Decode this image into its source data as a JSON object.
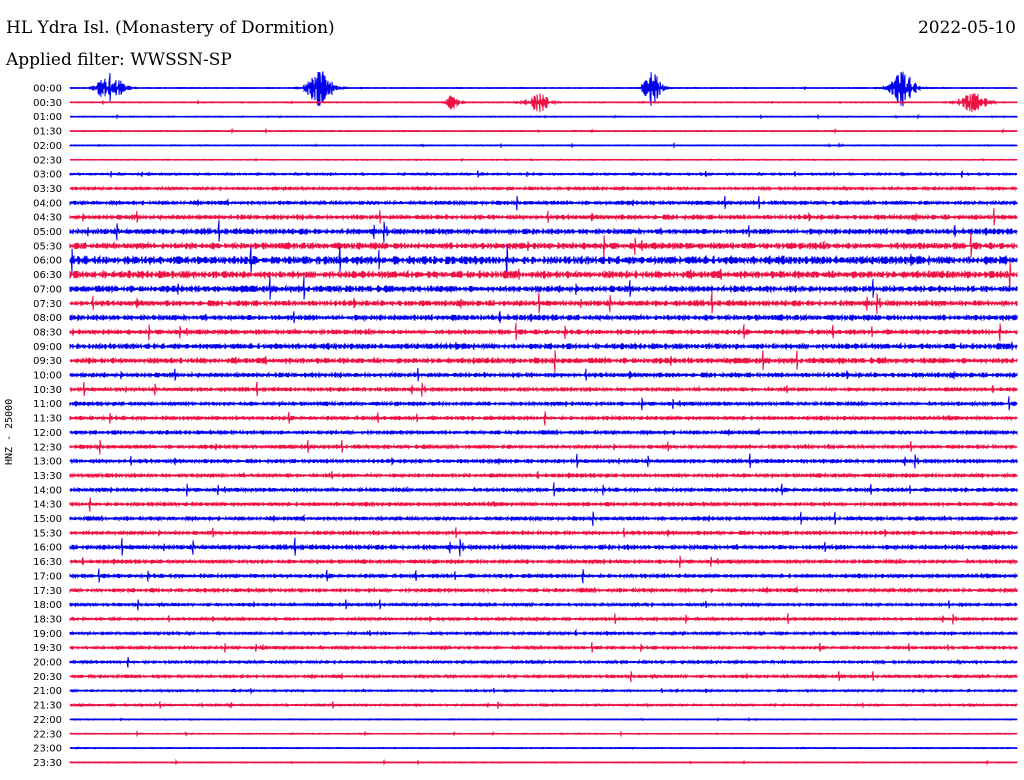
{
  "header": {
    "title": "HL Ydra Isl. (Monastery of Dormition)",
    "date": "2022-05-10",
    "filter": "Applied filter: WWSSN-SP",
    "channel_label": "HNZ - 25000"
  },
  "chart_data": {
    "type": "line",
    "title": "HL Ydra Isl. (Monastery of Dormition)",
    "ylabel": "HNZ - 25000",
    "xlabel": "",
    "row_labels": [
      "00:00",
      "00:30",
      "01:00",
      "01:30",
      "02:00",
      "02:30",
      "03:00",
      "03:30",
      "04:00",
      "04:30",
      "05:00",
      "05:30",
      "06:00",
      "06:30",
      "07:00",
      "07:30",
      "08:00",
      "08:30",
      "09:00",
      "09:30",
      "10:00",
      "10:30",
      "11:00",
      "11:30",
      "12:00",
      "12:30",
      "13:00",
      "13:30",
      "14:00",
      "14:30",
      "15:00",
      "15:30",
      "16:00",
      "16:30",
      "17:00",
      "17:30",
      "18:00",
      "18:30",
      "19:00",
      "19:30",
      "20:00",
      "20:30",
      "21:00",
      "21:30",
      "22:00",
      "22:30",
      "23:00",
      "23:30"
    ],
    "colors": {
      "even_rows": "#0000ee",
      "odd_rows": "#ee1144"
    },
    "row_noise_level": [
      1,
      1,
      1,
      1,
      1,
      1,
      2,
      3,
      4,
      5,
      6,
      7,
      9,
      8,
      7,
      6,
      6,
      5,
      6,
      6,
      5,
      4,
      4,
      4,
      4,
      4,
      4,
      4,
      4,
      4,
      4,
      4,
      5,
      4,
      4,
      4,
      3,
      3,
      3,
      3,
      3,
      3,
      2,
      2,
      1,
      1,
      1,
      1
    ],
    "events": [
      {
        "row": 0,
        "x_frac": 0.043,
        "peak": 16,
        "spread": 13
      },
      {
        "row": 0,
        "x_frac": 0.264,
        "peak": 18,
        "spread": 13
      },
      {
        "row": 0,
        "x_frac": 0.615,
        "peak": 18,
        "spread": 9
      },
      {
        "row": 0,
        "x_frac": 0.88,
        "peak": 18,
        "spread": 12
      },
      {
        "row": 1,
        "x_frac": 0.405,
        "peak": 8,
        "spread": 7
      },
      {
        "row": 1,
        "x_frac": 0.494,
        "peak": 10,
        "spread": 12
      },
      {
        "row": 1,
        "x_frac": 0.953,
        "peak": 10,
        "spread": 14
      }
    ]
  }
}
